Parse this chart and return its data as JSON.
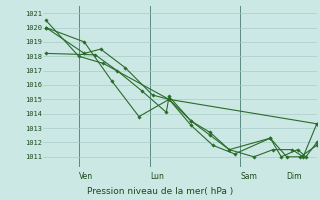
{
  "xlabel": "Pression niveau de la mer( hPa )",
  "ylim": [
    1010.5,
    1021.5
  ],
  "yticks": [
    1011,
    1012,
    1013,
    1014,
    1015,
    1016,
    1017,
    1018,
    1019,
    1020,
    1021
  ],
  "bg_color": "#cce8e4",
  "grid_color": "#aaccca",
  "line_color": "#2a6b2a",
  "marker_color": "#2a6b2a",
  "vline_color": "#5a8a80",
  "text_color": "#1a4a1a",
  "day_positions": [
    0.13,
    0.39,
    0.72,
    0.89
  ],
  "day_labels": [
    "Ven",
    "Lun",
    "Sam",
    "Dim"
  ],
  "vline_positions": [
    0.13,
    0.39,
    0.72
  ],
  "series": [
    {
      "x": [
        0.01,
        0.13,
        0.22,
        0.46,
        1.0
      ],
      "y": [
        1020.5,
        1018.0,
        1017.5,
        1015.0,
        1013.3
      ]
    },
    {
      "x": [
        0.01,
        0.15,
        0.25,
        0.35,
        0.46,
        0.54,
        0.62,
        0.7,
        0.83,
        0.89,
        0.94,
        1.0
      ],
      "y": [
        1020.0,
        1019.0,
        1016.3,
        1013.8,
        1015.0,
        1013.2,
        1011.8,
        1011.2,
        1012.3,
        1011.0,
        1011.0,
        1011.8
      ]
    },
    {
      "x": [
        0.01,
        0.15,
        0.21,
        0.3,
        0.4,
        0.46,
        0.54,
        0.61,
        0.68,
        0.83,
        0.87,
        0.93,
        0.96,
        1.0
      ],
      "y": [
        1020.0,
        1018.2,
        1018.5,
        1017.2,
        1015.3,
        1015.0,
        1013.5,
        1012.7,
        1011.5,
        1012.3,
        1011.0,
        1011.5,
        1011.0,
        1012.0
      ]
    },
    {
      "x": [
        0.01,
        0.19,
        0.27,
        0.36,
        0.45,
        0.46,
        0.54,
        0.61,
        0.68,
        0.77,
        0.84,
        0.91,
        0.95,
        1.0
      ],
      "y": [
        1018.2,
        1018.1,
        1017.0,
        1015.6,
        1014.1,
        1015.2,
        1013.5,
        1012.5,
        1011.5,
        1011.0,
        1011.5,
        1011.5,
        1011.0,
        1013.3
      ]
    }
  ]
}
